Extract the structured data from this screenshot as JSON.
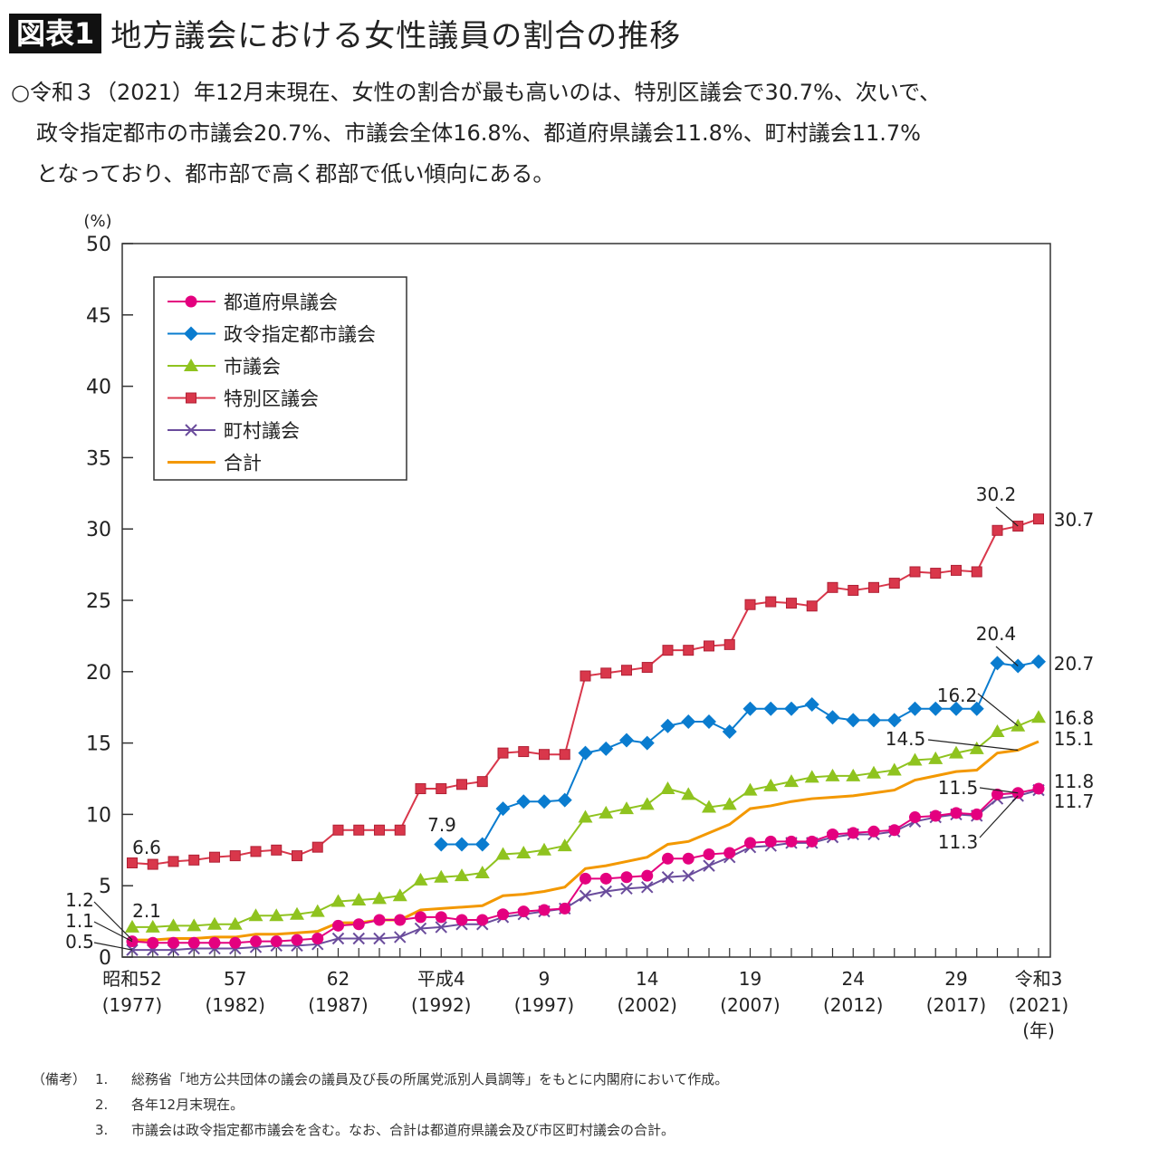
{
  "header": {
    "badge": "図表1",
    "title": "地方議会における女性議員の割合の推移"
  },
  "lead": [
    "○令和３（2021）年12月末現在、女性の割合が最も高いのは、特別区議会で30.7%、次いで、",
    "政令指定都市の市議会20.7%、市議会全体16.8%、都道府県議会11.8%、町村議会11.7%",
    "となっており、都市部で高く郡部で低い傾向にある。"
  ],
  "notes": {
    "label": "（備考）",
    "items": [
      {
        "num": "1.",
        "text": "総務省「地方公共団体の議会の議員及び長の所属党派別人員調等」をもとに内閣府において作成。"
      },
      {
        "num": "2.",
        "text": "各年12月末現在。"
      },
      {
        "num": "3.",
        "text": "市議会は政令指定都市議会を含む。なお、合計は都道府県議会及び市区町村議会の合計。"
      }
    ]
  },
  "chart_data": {
    "type": "line",
    "ylabel": "(%)",
    "xlabel": "(年)",
    "ylim": [
      0,
      50
    ],
    "yticks": [
      0,
      5,
      10,
      15,
      20,
      25,
      30,
      35,
      40,
      45,
      50
    ],
    "xlim": [
      1977,
      2021
    ],
    "xticks": [
      {
        "year": 1977,
        "label": "昭和52",
        "sub": "(1977)"
      },
      {
        "year": 1982,
        "label": "57",
        "sub": "(1982)"
      },
      {
        "year": 1987,
        "label": "62",
        "sub": "(1987)"
      },
      {
        "year": 1992,
        "label": "平成4",
        "sub": "(1992)"
      },
      {
        "year": 1997,
        "label": "9",
        "sub": "(1997)"
      },
      {
        "year": 2002,
        "label": "14",
        "sub": "(2002)"
      },
      {
        "year": 2007,
        "label": "19",
        "sub": "(2007)"
      },
      {
        "year": 2012,
        "label": "24",
        "sub": "(2012)"
      },
      {
        "year": 2017,
        "label": "29",
        "sub": "(2017)"
      },
      {
        "year": 2021,
        "label": "令和3",
        "sub": "(2021)"
      }
    ],
    "grid": false,
    "legend_position": "top-left",
    "x_start": 1977,
    "series": [
      {
        "name": "都道府県議会",
        "marker": "circle",
        "color": "#e4007f",
        "values": [
          1.1,
          1.0,
          1.0,
          1.0,
          1.0,
          1.0,
          1.1,
          1.1,
          1.2,
          1.3,
          2.2,
          2.3,
          2.6,
          2.6,
          2.8,
          2.8,
          2.6,
          2.6,
          3.0,
          3.2,
          3.3,
          3.4,
          5.5,
          5.5,
          5.6,
          5.7,
          6.9,
          6.9,
          7.2,
          7.3,
          8.0,
          8.1,
          8.1,
          8.1,
          8.6,
          8.7,
          8.8,
          8.9,
          9.8,
          9.9,
          10.1,
          10.0,
          11.4,
          11.5,
          11.8
        ]
      },
      {
        "name": "政令指定都市議会",
        "marker": "diamond",
        "color": "#0a7ccf",
        "start_year": 1992,
        "values": [
          7.9,
          7.9,
          7.9,
          10.4,
          10.9,
          10.9,
          11.0,
          14.3,
          14.6,
          15.2,
          15.0,
          16.2,
          16.5,
          16.5,
          15.8,
          17.4,
          17.4,
          17.4,
          17.7,
          16.8,
          16.6,
          16.6,
          16.6,
          17.4,
          17.4,
          17.4,
          17.4,
          20.6,
          20.4,
          20.7
        ]
      },
      {
        "name": "市議会",
        "marker": "triangle",
        "color": "#8fc31f",
        "values": [
          2.1,
          2.1,
          2.2,
          2.2,
          2.3,
          2.3,
          2.9,
          2.9,
          3.0,
          3.2,
          3.9,
          4.0,
          4.1,
          4.3,
          5.4,
          5.6,
          5.7,
          5.9,
          7.2,
          7.3,
          7.5,
          7.8,
          9.8,
          10.1,
          10.4,
          10.7,
          11.8,
          11.4,
          10.5,
          10.7,
          11.7,
          12.0,
          12.3,
          12.6,
          12.7,
          12.7,
          12.9,
          13.1,
          13.8,
          13.9,
          14.3,
          14.6,
          15.8,
          16.2,
          16.8
        ]
      },
      {
        "name": "特別区議会",
        "marker": "square",
        "color": "#d9374b",
        "values": [
          6.6,
          6.5,
          6.7,
          6.8,
          7.0,
          7.1,
          7.4,
          7.5,
          7.1,
          7.7,
          8.9,
          8.9,
          8.9,
          8.9,
          11.8,
          11.8,
          12.1,
          12.3,
          14.3,
          14.4,
          14.2,
          14.2,
          19.7,
          19.9,
          20.1,
          20.3,
          21.5,
          21.5,
          21.8,
          21.9,
          24.7,
          24.9,
          24.8,
          24.6,
          25.9,
          25.7,
          25.9,
          26.2,
          27.0,
          26.9,
          27.1,
          27.0,
          29.9,
          30.2,
          30.7
        ]
      },
      {
        "name": "町村議会",
        "marker": "x",
        "color": "#6a4c9c",
        "values": [
          0.5,
          0.5,
          0.5,
          0.6,
          0.6,
          0.6,
          0.7,
          0.8,
          0.8,
          0.9,
          1.3,
          1.3,
          1.3,
          1.4,
          2.0,
          2.1,
          2.3,
          2.3,
          2.8,
          3.0,
          3.2,
          3.4,
          4.3,
          4.6,
          4.8,
          4.9,
          5.6,
          5.7,
          6.4,
          7.0,
          7.7,
          7.8,
          8.0,
          8.0,
          8.4,
          8.6,
          8.6,
          8.8,
          9.5,
          9.8,
          10.0,
          9.9,
          11.1,
          11.3,
          11.7
        ]
      },
      {
        "name": "合計",
        "marker": "none",
        "color": "#f39800",
        "values": [
          1.2,
          1.2,
          1.3,
          1.3,
          1.4,
          1.4,
          1.6,
          1.6,
          1.7,
          1.8,
          2.4,
          2.4,
          2.6,
          2.6,
          3.3,
          3.4,
          3.5,
          3.6,
          4.3,
          4.4,
          4.6,
          4.9,
          6.2,
          6.4,
          6.7,
          7.0,
          7.9,
          8.1,
          8.7,
          9.3,
          10.4,
          10.6,
          10.9,
          11.1,
          11.2,
          11.3,
          11.5,
          11.7,
          12.4,
          12.7,
          13.0,
          13.1,
          14.3,
          14.5,
          15.1
        ]
      }
    ],
    "annotations": [
      {
        "text": "6.6",
        "series": "特別区議会",
        "year": 1977
      },
      {
        "text": "2.1",
        "series": "市議会",
        "year": 1977
      },
      {
        "text": "1.2",
        "series": "合計",
        "year": 1977
      },
      {
        "text": "1.1",
        "series": "都道府県議会",
        "year": 1977
      },
      {
        "text": "0.5",
        "series": "町村議会",
        "year": 1977
      },
      {
        "text": "7.9",
        "series": "政令指定都市議会",
        "year": 1992
      },
      {
        "text": "30.2",
        "series": "特別区議会",
        "year": 2020
      },
      {
        "text": "30.7",
        "series": "特別区議会",
        "year": 2021
      },
      {
        "text": "20.4",
        "series": "政令指定都市議会",
        "year": 2020
      },
      {
        "text": "20.7",
        "series": "政令指定都市議会",
        "year": 2021
      },
      {
        "text": "16.2",
        "series": "市議会",
        "year": 2020
      },
      {
        "text": "16.8",
        "series": "市議会",
        "year": 2021
      },
      {
        "text": "14.5",
        "series": "合計",
        "year": 2020
      },
      {
        "text": "15.1",
        "series": "合計",
        "year": 2021
      },
      {
        "text": "11.5",
        "series": "都道府県議会",
        "year": 2020
      },
      {
        "text": "11.8",
        "series": "都道府県議会",
        "year": 2021
      },
      {
        "text": "11.3",
        "series": "町村議会",
        "year": 2020
      },
      {
        "text": "11.7",
        "series": "町村議会",
        "year": 2021
      }
    ]
  }
}
